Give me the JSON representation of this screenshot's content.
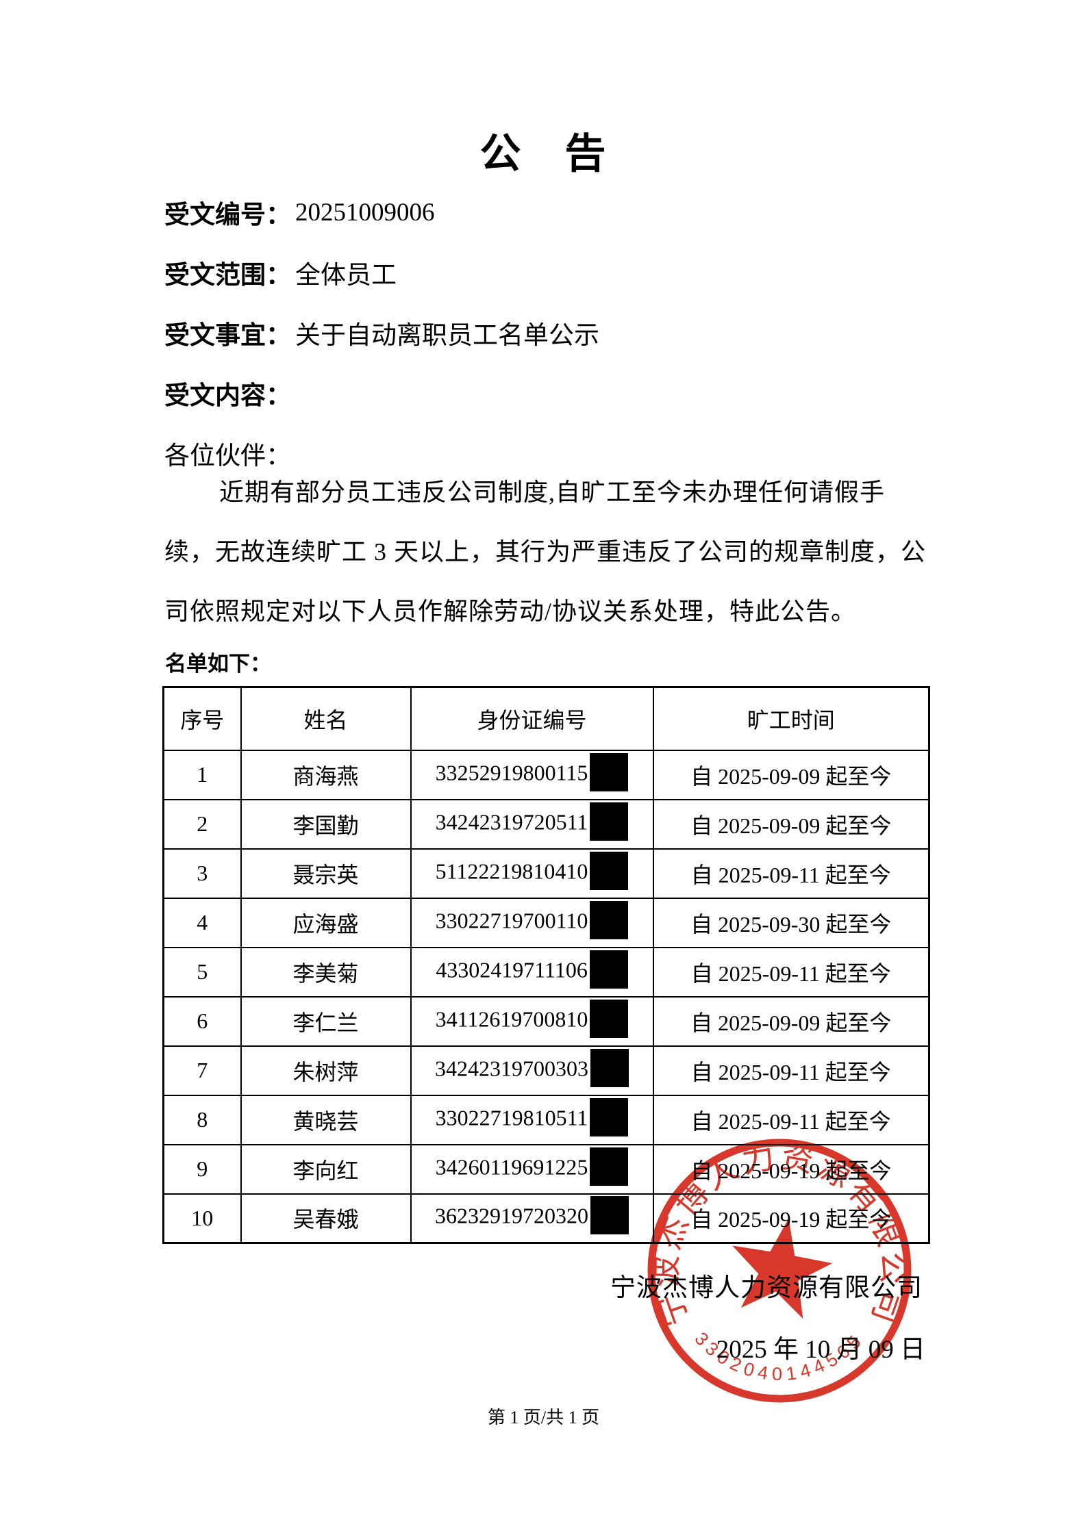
{
  "page": {
    "title": "公　告",
    "fields": [
      {
        "label": "受文编号：",
        "value": "20251009006"
      },
      {
        "label": "受文范围：",
        "value": "全体员工"
      },
      {
        "label": "受文事宜：",
        "value": "关于自动离职员工名单公示"
      },
      {
        "label": "受文内容：",
        "value": ""
      }
    ],
    "salutation": "各位伙伴：",
    "body_lines": [
      "近期有部分员工违反公司制度,自旷工至今未办理任何请假手",
      "续，无故连续旷工 3 天以上，其行为严重违反了公司的规章制度，公",
      "司依照规定对以下人员作解除劳动/协议关系处理，特此公告。"
    ],
    "list_intro": "名单如下：",
    "table": {
      "headers": [
        "序号",
        "姓名",
        "身份证编号",
        "旷工时间"
      ],
      "rows": [
        {
          "no": "1",
          "name": "商海燕",
          "id_prefix": "33252919800115",
          "absence": "自 2025-09-09 起至今"
        },
        {
          "no": "2",
          "name": "李国勤",
          "id_prefix": "34242319720511",
          "absence": "自 2025-09-09 起至今"
        },
        {
          "no": "3",
          "name": "聂宗英",
          "id_prefix": "51122219810410",
          "absence": "自 2025-09-11 起至今"
        },
        {
          "no": "4",
          "name": "应海盛",
          "id_prefix": "33022719700110",
          "absence": "自 2025-09-30 起至今"
        },
        {
          "no": "5",
          "name": "李美菊",
          "id_prefix": "43302419711106",
          "absence": "自 2025-09-11 起至今"
        },
        {
          "no": "6",
          "name": "李仁兰",
          "id_prefix": "34112619700810",
          "absence": "自 2025-09-09 起至今"
        },
        {
          "no": "7",
          "name": "朱树萍",
          "id_prefix": "34242319700303",
          "absence": "自 2025-09-11 起至今"
        },
        {
          "no": "8",
          "name": "黄晓芸",
          "id_prefix": "33022719810511",
          "absence": "自 2025-09-11 起至今"
        },
        {
          "no": "9",
          "name": "李向红",
          "id_prefix": "34260119691225",
          "absence": "自 2025-09-19 起至今"
        },
        {
          "no": "10",
          "name": "吴春娥",
          "id_prefix": "36232919720320",
          "absence": "自 2025-09-19 起至今"
        }
      ]
    },
    "signature": {
      "company": "宁波杰博人力资源有限公司",
      "date": "2025 年 10 月 09 日"
    },
    "stamp": {
      "arc_text": "宁波杰博人力资源有限公司",
      "serial": "3302040144565",
      "color": "#d5281b"
    },
    "footer": "第 1 页/共 1 页"
  }
}
